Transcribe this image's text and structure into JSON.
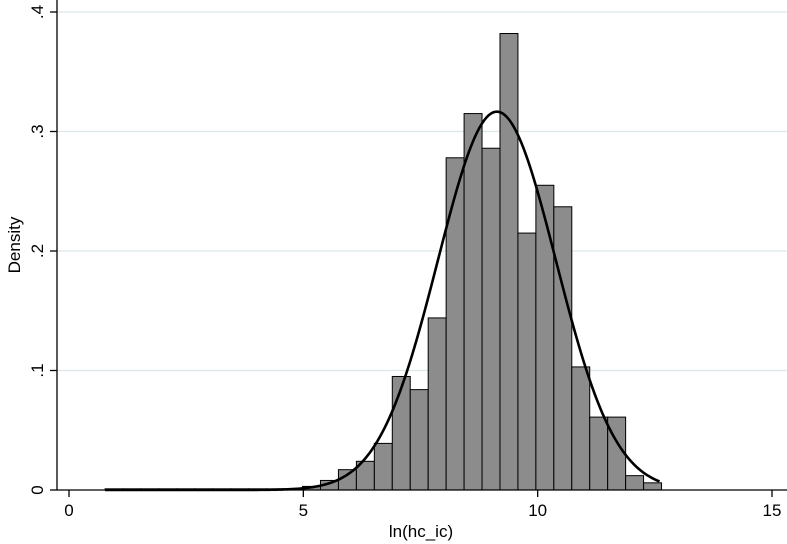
{
  "chart_data": {
    "type": "bar",
    "subtype": "histogram with normal density overlay",
    "title": "",
    "xlabel": "ln(hc_ic)",
    "ylabel": "Density",
    "xlim": [
      0,
      15
    ],
    "ylim": [
      0,
      0.4
    ],
    "xticks": [
      0,
      5,
      10,
      15
    ],
    "xtick_labels": [
      "0",
      "5",
      "10",
      "15"
    ],
    "yticks": [
      0,
      0.1,
      0.2,
      0.3,
      0.4
    ],
    "ytick_labels": [
      "0",
      ".1",
      ".2",
      ".3",
      ".4"
    ],
    "grid": "horizontal",
    "legend": "none",
    "bin_width": 0.383,
    "bins": [
      {
        "x0": 0.77,
        "density": 0.001
      },
      {
        "x0": 1.153,
        "density": 0.0
      },
      {
        "x0": 1.536,
        "density": 0.0
      },
      {
        "x0": 1.919,
        "density": 0.0
      },
      {
        "x0": 2.302,
        "density": 0.001
      },
      {
        "x0": 2.685,
        "density": 0.0
      },
      {
        "x0": 3.068,
        "density": 0.0
      },
      {
        "x0": 3.451,
        "density": 0.0
      },
      {
        "x0": 3.834,
        "density": 0.0
      },
      {
        "x0": 4.217,
        "density": 0.001
      },
      {
        "x0": 4.6,
        "density": 0.001
      },
      {
        "x0": 4.983,
        "density": 0.003
      },
      {
        "x0": 5.366,
        "density": 0.008
      },
      {
        "x0": 5.749,
        "density": 0.017
      },
      {
        "x0": 6.132,
        "density": 0.024
      },
      {
        "x0": 6.515,
        "density": 0.039
      },
      {
        "x0": 6.898,
        "density": 0.095
      },
      {
        "x0": 7.281,
        "density": 0.084
      },
      {
        "x0": 7.664,
        "density": 0.144
      },
      {
        "x0": 8.047,
        "density": 0.278
      },
      {
        "x0": 8.43,
        "density": 0.315
      },
      {
        "x0": 8.813,
        "density": 0.286
      },
      {
        "x0": 9.196,
        "density": 0.382
      },
      {
        "x0": 9.579,
        "density": 0.215
      },
      {
        "x0": 9.962,
        "density": 0.255
      },
      {
        "x0": 10.345,
        "density": 0.237
      },
      {
        "x0": 10.728,
        "density": 0.103
      },
      {
        "x0": 11.111,
        "density": 0.061
      },
      {
        "x0": 11.494,
        "density": 0.061
      },
      {
        "x0": 11.877,
        "density": 0.012
      },
      {
        "x0": 12.26,
        "density": 0.006
      }
    ],
    "normal_curve": {
      "mean": 9.13,
      "sd": 1.26,
      "x_range": [
        0.77,
        12.6
      ]
    },
    "colors": {
      "bar_fill": "#8c8c8c",
      "bar_edge": "#000000",
      "curve": "#000000",
      "grid": "#dce6eb"
    }
  }
}
